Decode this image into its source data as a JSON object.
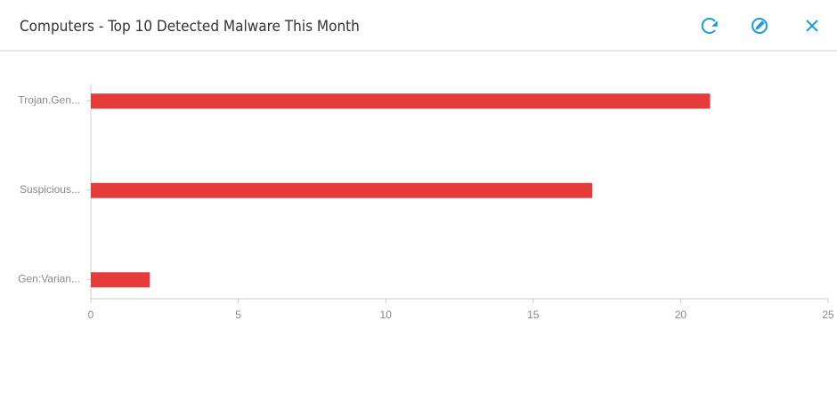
{
  "header": {
    "title": "Computers - Top 10 Detected Malware This Month"
  },
  "chart_data": {
    "type": "bar",
    "orientation": "horizontal",
    "categories": [
      "Trojan.Gen...",
      "Suspicious...",
      "Gen:Varian..."
    ],
    "values": [
      21,
      17,
      2
    ],
    "color": "#e63b3b",
    "xlim": [
      0,
      25
    ],
    "xticks": [
      0,
      5,
      10,
      15,
      20,
      25
    ]
  }
}
